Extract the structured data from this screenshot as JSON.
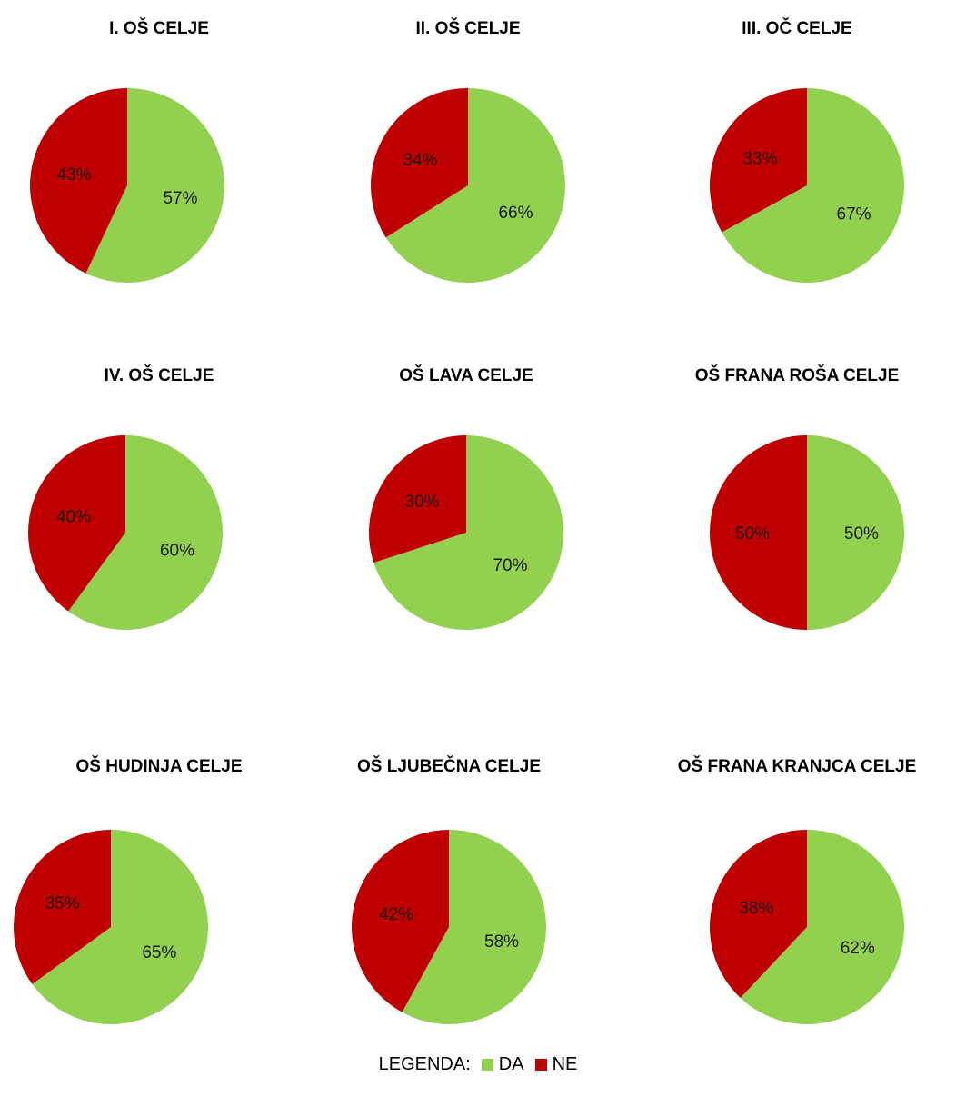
{
  "colors": {
    "da": "#92d050",
    "ne": "#c00000"
  },
  "legend": {
    "label": "LEGENDA:",
    "da": "DA",
    "ne": "NE"
  },
  "chart_data": [
    {
      "type": "pie",
      "title": "I. OŠ CELJE",
      "slices": [
        {
          "name": "DA",
          "value": 57,
          "label": "57%"
        },
        {
          "name": "NE",
          "value": 43,
          "label": "43%"
        }
      ]
    },
    {
      "type": "pie",
      "title": "II. OŠ CELJE",
      "slices": [
        {
          "name": "DA",
          "value": 66,
          "label": "66%"
        },
        {
          "name": "NE",
          "value": 34,
          "label": "34%"
        }
      ]
    },
    {
      "type": "pie",
      "title": "III. OČ CELJE",
      "slices": [
        {
          "name": "DA",
          "value": 67,
          "label": "67%"
        },
        {
          "name": "NE",
          "value": 33,
          "label": "33%"
        }
      ]
    },
    {
      "type": "pie",
      "title": "IV. OŠ CELJE",
      "slices": [
        {
          "name": "DA",
          "value": 60,
          "label": "60%"
        },
        {
          "name": "NE",
          "value": 40,
          "label": "40%"
        }
      ]
    },
    {
      "type": "pie",
      "title": "OŠ LAVA CELJE",
      "slices": [
        {
          "name": "DA",
          "value": 70,
          "label": "70%"
        },
        {
          "name": "NE",
          "value": 30,
          "label": "30%"
        }
      ]
    },
    {
      "type": "pie",
      "title": "OŠ FRANA ROŠA CELJE",
      "slices": [
        {
          "name": "DA",
          "value": 50,
          "label": "50%"
        },
        {
          "name": "NE",
          "value": 50,
          "label": "50%"
        }
      ]
    },
    {
      "type": "pie",
      "title": "OŠ HUDINJA CELJE",
      "slices": [
        {
          "name": "DA",
          "value": 65,
          "label": "65%"
        },
        {
          "name": "NE",
          "value": 35,
          "label": "35%"
        }
      ]
    },
    {
      "type": "pie",
      "title": "OŠ LJUBEČNA CELJE",
      "slices": [
        {
          "name": "DA",
          "value": 58,
          "label": "58%"
        },
        {
          "name": "NE",
          "value": 42,
          "label": "42%"
        }
      ]
    },
    {
      "type": "pie",
      "title": "OŠ FRANA KRANJCA CELJE",
      "slices": [
        {
          "name": "DA",
          "value": 62,
          "label": "62%"
        },
        {
          "name": "NE",
          "value": 38,
          "label": "38%"
        }
      ]
    }
  ]
}
